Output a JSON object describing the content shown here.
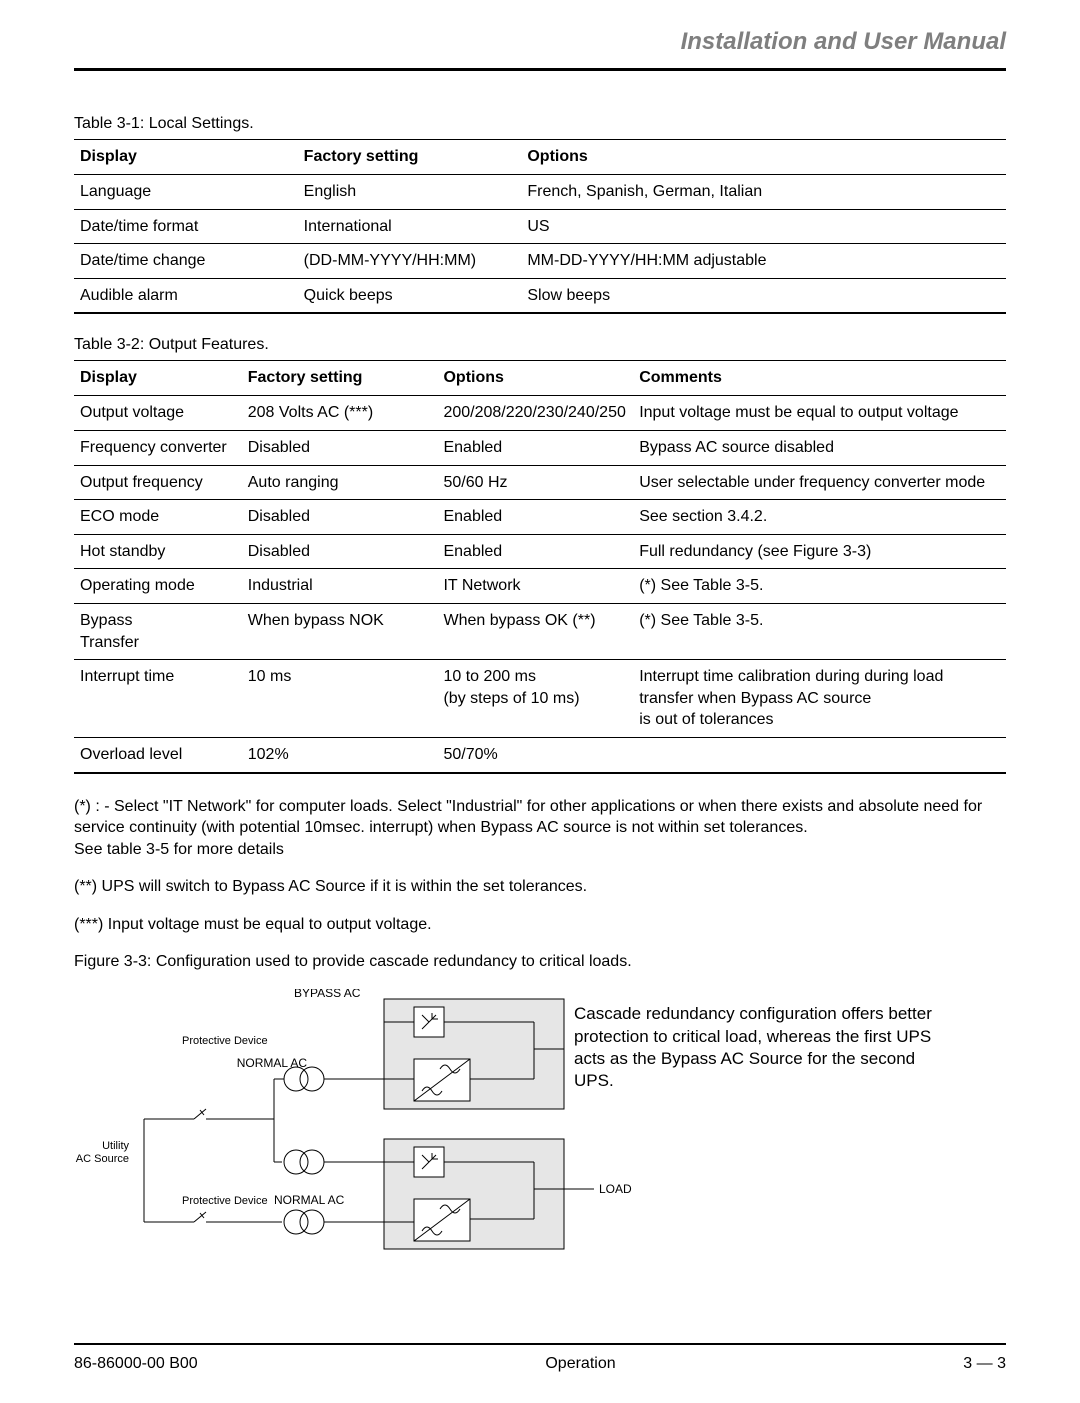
{
  "header": {
    "title": "Installation and User Manual"
  },
  "table31": {
    "caption": "Table 3-1:  Local Settings.",
    "columns": [
      "Display",
      "Factory setting",
      "Options"
    ],
    "widths": [
      "24%",
      "24%",
      "52%"
    ],
    "rows": [
      [
        "Language",
        "English",
        "French, Spanish, German, Italian"
      ],
      [
        "Date/time format",
        "International",
        "US"
      ],
      [
        "Date/time change",
        "(DD-MM-YYYY/HH:MM)",
        "MM-DD-YYYY/HH:MM adjustable"
      ],
      [
        "Audible alarm",
        "Quick beeps",
        "Slow beeps"
      ]
    ]
  },
  "table32": {
    "caption": "Table 3-2:  Output Features.",
    "columns": [
      "Display",
      "Factory setting",
      "Options",
      "Comments"
    ],
    "widths": [
      "18%",
      "21%",
      "21%",
      "40%"
    ],
    "rows": [
      [
        "Output voltage",
        "208 Volts AC (***)",
        "200/208/220/230/240/250",
        "Input voltage must be equal to output voltage"
      ],
      [
        "Frequency converter",
        "Disabled",
        "Enabled",
        "Bypass AC source disabled"
      ],
      [
        "Output frequency",
        "Auto ranging",
        "50/60 Hz",
        "User selectable under frequency converter mode"
      ],
      [
        "ECO mode",
        "Disabled",
        "Enabled",
        "See section 3.4.2."
      ],
      [
        "Hot standby",
        "Disabled",
        "Enabled",
        "Full redundancy (see Figure 3-3)"
      ],
      [
        "Operating mode",
        "Industrial",
        "IT Network",
        "(*) See Table 3-5."
      ],
      [
        "Bypass\nTransfer",
        "When bypass NOK",
        "When bypass OK (**)",
        "(*) See Table 3-5."
      ],
      [
        "Interrupt time",
        "10 ms",
        "10 to 200 ms\n(by steps of 10 ms)",
        "Interrupt time calibration during during load transfer when Bypass AC source\nis out of tolerances"
      ],
      [
        "Overload level",
        "102%",
        "50/70%",
        ""
      ]
    ]
  },
  "footnotes": {
    "n1": "(*) : - Select \"IT Network\" for computer loads. Select \"Industrial\" for other applications or when there exists and absolute need for service continuity (with potential 10msec. interrupt) when Bypass AC source is not within set tolerances.\nSee table 3-5 for more details",
    "n2": "(**)  UPS will switch to Bypass AC Source if it is within the set tolerances.",
    "n3": "(***) Input voltage must be equal to output voltage."
  },
  "figure": {
    "caption": "Figure 3-3:  Configuration used to provide cascade redundancy to critical loads.",
    "labels": {
      "bypass_ac": "BYPASS AC",
      "protective": "Protective Device",
      "normal_ac": "NORMAL AC",
      "utility1": "Utility",
      "utility2": "AC Source",
      "load": "LOAD"
    },
    "description": "Cascade redundancy configuration offers better protection to critical load, whereas the first UPS acts as the Bypass AC Source for the second UPS.",
    "colors": {
      "box_fill": "#e6e6e6",
      "inner_fill": "#ffffff",
      "stroke": "#000000"
    }
  },
  "footer": {
    "left": "86-86000-00 B00",
    "center": "Operation",
    "right": "3 — 3"
  }
}
